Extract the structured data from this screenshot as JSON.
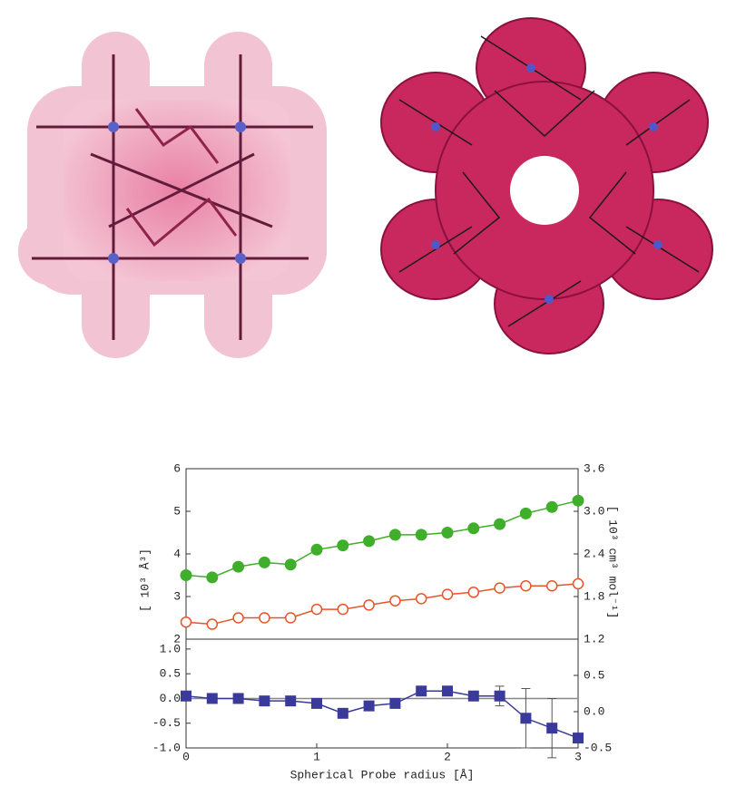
{
  "chart_data": [
    {
      "type": "line",
      "ylabel": "[ 10³ Å³]",
      "y2label": "[ 10³ cm³ mol⁻¹]",
      "x": [
        0,
        0.2,
        0.4,
        0.6,
        0.8,
        1.0,
        1.2,
        1.4,
        1.6,
        1.8,
        2.0,
        2.2,
        2.4,
        2.6,
        2.8,
        3.0
      ],
      "xlim": [
        0,
        3
      ],
      "ylim": [
        2,
        6
      ],
      "yticks": [
        2,
        3,
        4,
        5,
        6
      ],
      "y2lim": [
        1.2,
        3.6
      ],
      "y2ticks": [
        {
          "value": 1.2,
          "label": "1.2"
        },
        1.8,
        2.4,
        {
          "value": 3.0,
          "label": "3.0"
        },
        3.6
      ],
      "series": [
        {
          "color": "#3fae2a",
          "marker": "filled-circle",
          "values": [
            3.5,
            3.45,
            3.7,
            3.8,
            3.75,
            4.1,
            4.2,
            4.3,
            4.45,
            4.45,
            4.5,
            4.6,
            4.7,
            4.95,
            5.1,
            5.25
          ]
        },
        {
          "color": "#e8542a",
          "marker": "open-circle",
          "axis": "y2",
          "values": [
            1.44,
            1.41,
            1.5,
            1.5,
            1.5,
            1.62,
            1.62,
            1.68,
            1.74,
            1.77,
            1.83,
            1.86,
            1.92,
            1.95,
            1.95,
            1.98
          ]
        }
      ]
    },
    {
      "type": "line",
      "xlabel": "Spherical Probe radius [Å]",
      "x": [
        0,
        0.2,
        0.4,
        0.6,
        0.8,
        1.0,
        1.2,
        1.4,
        1.6,
        1.8,
        2.0,
        2.2,
        2.4,
        2.6,
        2.8,
        3.0
      ],
      "xlim": [
        0,
        3
      ],
      "xticks": [
        0,
        1,
        2,
        3
      ],
      "ylim": [
        -1.0,
        1.2
      ],
      "yticks": [
        {
          "value": -1.0,
          "label": "-1.0"
        },
        -0.5,
        {
          "value": 0.0,
          "label": "0.0"
        },
        0.5,
        {
          "value": 1.0,
          "label": "1.0"
        }
      ],
      "y2lim": [
        -0.5,
        1.0
      ],
      "y2ticks": [
        -0.5,
        {
          "value": 0.0,
          "label": "0.0"
        },
        0.5
      ],
      "zero_line": true,
      "series": [
        {
          "color": "#3a3a9a",
          "marker": "filled-square",
          "values": [
            0.05,
            0.0,
            0.0,
            -0.05,
            -0.05,
            -0.1,
            -0.3,
            -0.15,
            -0.1,
            0.15,
            0.15,
            0.05,
            0.05,
            -0.4,
            -0.6,
            -0.8
          ],
          "errors": [
            null,
            null,
            null,
            null,
            null,
            null,
            null,
            null,
            null,
            null,
            null,
            null,
            0.2,
            0.6,
            0.6,
            null
          ]
        }
      ]
    }
  ]
}
